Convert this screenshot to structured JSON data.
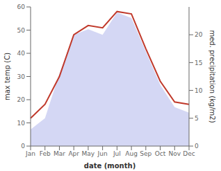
{
  "chart_data": {
    "type": "line",
    "xlabel": "date (month)",
    "ylabel": "max temp (C)",
    "y2label": "med. precipitation (kg/m2)",
    "categories": [
      "Jan",
      "Feb",
      "Mar",
      "Apr",
      "May",
      "Jun",
      "Jul",
      "Aug",
      "Sep",
      "Oct",
      "Nov",
      "Dec"
    ],
    "series": [
      {
        "type": "area",
        "axis": "y2",
        "color": "#c5caf0",
        "values": [
          3,
          5,
          13,
          20,
          21,
          20,
          24,
          23,
          17,
          11,
          7,
          6
        ]
      },
      {
        "type": "line",
        "color": "#c0392b",
        "values": [
          12,
          18,
          30,
          48,
          52,
          51,
          58,
          57,
          42,
          28,
          19,
          18
        ]
      }
    ],
    "ylim": [
      0,
      60
    ],
    "yticks": [
      0,
      10,
      20,
      30,
      40,
      50,
      60
    ],
    "y2lim": [
      0,
      25
    ],
    "y2ticks": [
      0,
      5,
      10,
      15,
      20
    ],
    "grid": false
  }
}
